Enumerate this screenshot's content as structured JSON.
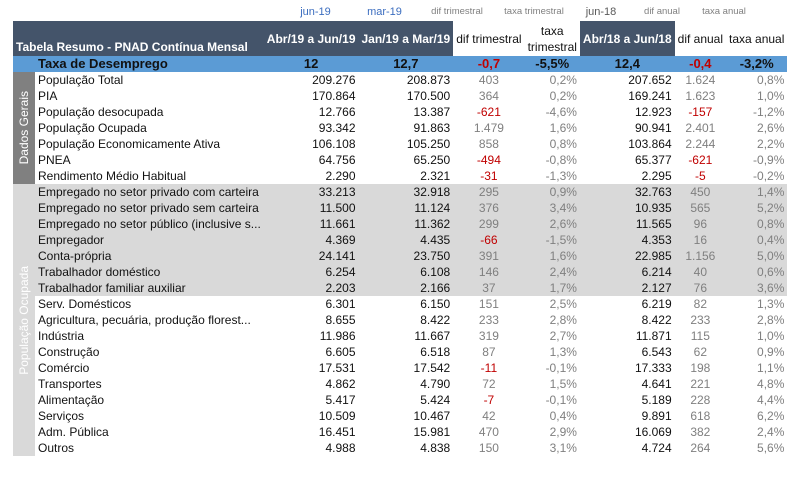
{
  "top_labels": {
    "c1": "jun-19",
    "c2": "mar-19",
    "c3": "dif trimestral",
    "c4": "taxa trimestral",
    "c5": "jun-18",
    "c6": "dif anual",
    "c7": "taxa anual"
  },
  "header": {
    "title": "Tabela Resumo - PNAD Contínua Mensal",
    "c1": "Abr/19 a Jun/19",
    "c2": "Jan/19 a Mar/19",
    "c3": "dif trimestral",
    "c4": "taxa trimestral",
    "c5": "Abr/18 a Jun/18",
    "c6": "dif anual",
    "c7": "taxa anual"
  },
  "unemployment": [
    "Taxa de Desemprego",
    "12",
    "12,7",
    "-0,7",
    "-5,5%",
    "12,4",
    "-0,4",
    "-3,2%"
  ],
  "groups": {
    "dados_gerais": "Dados Gerais",
    "populacao_ocupada": "População Ocupada"
  },
  "rows_general": [
    [
      "População Total",
      "209.276",
      "208.873",
      "403",
      "0,2%",
      "207.652",
      "1.624",
      "0,8%"
    ],
    [
      "PIA",
      "170.864",
      "170.500",
      "364",
      "0,2%",
      "169.241",
      "1.623",
      "1,0%"
    ],
    [
      "População desocupada",
      "12.766",
      "13.387",
      "-621",
      "-4,6%",
      "12.923",
      "-157",
      "-1,2%"
    ],
    [
      "População Ocupada",
      "93.342",
      "91.863",
      "1.479",
      "1,6%",
      "90.941",
      "2.401",
      "2,6%"
    ],
    [
      "População Economicamente Ativa",
      "106.108",
      "105.250",
      "858",
      "0,8%",
      "103.864",
      "2.244",
      "2,2%"
    ],
    [
      "PNEA",
      "64.756",
      "65.250",
      "-494",
      "-0,8%",
      "65.377",
      "-621",
      "-0,9%"
    ],
    [
      "Rendimento Médio Habitual",
      "2.290",
      "2.321",
      "-31",
      "-1,3%",
      "2.295",
      "-5",
      "-0,2%"
    ]
  ],
  "rows_position": [
    [
      "Empregado no setor privado com carteira",
      "33.213",
      "32.918",
      "295",
      "0,9%",
      "32.763",
      "450",
      "1,4%"
    ],
    [
      "Empregado no setor privado sem carteira",
      "11.500",
      "11.124",
      "376",
      "3,4%",
      "10.935",
      "565",
      "5,2%"
    ],
    [
      "Empregado no setor público (inclusive s...",
      "11.661",
      "11.362",
      "299",
      "2,6%",
      "11.565",
      "96",
      "0,8%"
    ],
    [
      "Empregador",
      "4.369",
      "4.435",
      "-66",
      "-1,5%",
      "4.353",
      "16",
      "0,4%"
    ],
    [
      "Conta-própria",
      "24.141",
      "23.750",
      "391",
      "1,6%",
      "22.985",
      "1.156",
      "5,0%"
    ],
    [
      "Trabalhador doméstico",
      "6.254",
      "6.108",
      "146",
      "2,4%",
      "6.214",
      "40",
      "0,6%"
    ],
    [
      "Trabalhador familiar auxiliar",
      "2.203",
      "2.166",
      "37",
      "1,7%",
      "2.127",
      "76",
      "3,6%"
    ]
  ],
  "rows_sector": [
    [
      "Serv. Domésticos",
      "6.301",
      "6.150",
      "151",
      "2,5%",
      "6.219",
      "82",
      "1,3%"
    ],
    [
      "Agricultura, pecuária, produção florest...",
      "8.655",
      "8.422",
      "233",
      "2,8%",
      "8.422",
      "233",
      "2,8%"
    ],
    [
      "Indústria",
      "11.986",
      "11.667",
      "319",
      "2,7%",
      "11.871",
      "115",
      "1,0%"
    ],
    [
      "Construção",
      "6.605",
      "6.518",
      "87",
      "1,3%",
      "6.543",
      "62",
      "0,9%"
    ],
    [
      "Comércio",
      "17.531",
      "17.542",
      "-11",
      "-0,1%",
      "17.333",
      "198",
      "1,1%"
    ],
    [
      "Transportes",
      "4.862",
      "4.790",
      "72",
      "1,5%",
      "4.641",
      "221",
      "4,8%"
    ],
    [
      "Alimentação",
      "5.417",
      "5.424",
      "-7",
      "-0,1%",
      "5.189",
      "228",
      "4,4%"
    ],
    [
      "Serviços",
      "10.509",
      "10.467",
      "42",
      "0,4%",
      "9.891",
      "618",
      "6,2%"
    ],
    [
      "Adm. Pública",
      "16.451",
      "15.981",
      "470",
      "2,9%",
      "16.069",
      "382",
      "2,4%"
    ],
    [
      "Outros",
      "4.988",
      "4.838",
      "150",
      "3,1%",
      "4.724",
      "264",
      "5,6%"
    ]
  ],
  "colors": {
    "header_bg": "#44546a",
    "highlight_row": "#5b9bd5",
    "shaded_rows": "#d9d9d9",
    "negative": "#c00000",
    "group_label_bg": "#808080",
    "top_label_blue": "#3b6dbf"
  }
}
